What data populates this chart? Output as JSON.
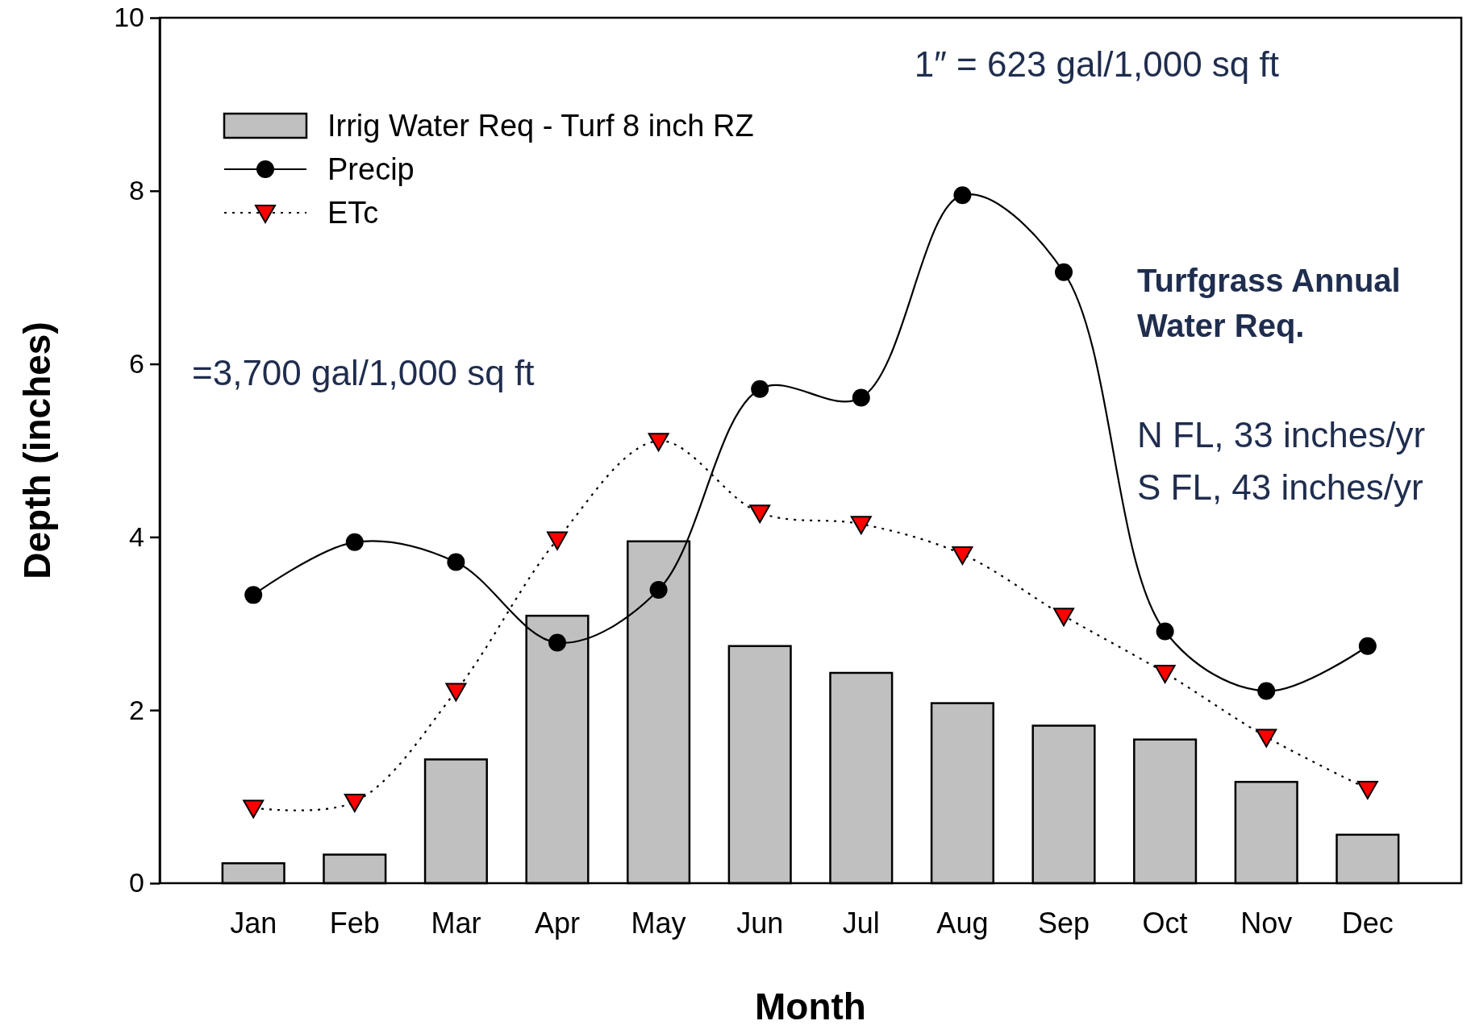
{
  "chart_data": {
    "type": "bar",
    "xlabel": "Month",
    "ylabel": "Depth (inches)",
    "categories": [
      "Jan",
      "Feb",
      "Mar",
      "Apr",
      "May",
      "Jun",
      "Jul",
      "Aug",
      "Sep",
      "Oct",
      "Nov",
      "Dec"
    ],
    "series": [
      {
        "name": "Irrig Water Req - Turf 8 inch RZ",
        "color": "#c0c0c0",
        "values": [
          0.23,
          0.33,
          1.43,
          3.09,
          3.95,
          2.74,
          2.43,
          2.08,
          1.82,
          1.66,
          1.17,
          0.56
        ]
      },
      {
        "name": "Precip",
        "type": "line",
        "color": "#000000",
        "marker": "circle",
        "line_style": "solid",
        "values": [
          3.33,
          3.94,
          3.71,
          2.78,
          3.39,
          5.71,
          5.61,
          7.95,
          7.06,
          2.91,
          2.22,
          2.74
        ]
      },
      {
        "name": "ETc",
        "type": "line",
        "color": "#ff0000",
        "marker": "triangle",
        "line_style": "dotted",
        "values": [
          0.87,
          0.94,
          2.22,
          3.97,
          5.11,
          4.28,
          4.15,
          3.8,
          3.09,
          2.43,
          1.69,
          1.09
        ]
      }
    ],
    "ylim": [
      0,
      10
    ],
    "yticks": [
      0,
      2,
      4,
      6,
      8,
      10
    ],
    "legend": "top left",
    "annotations": [
      "1″ = 623 gal/1,000 sq ft",
      "=3,700 gal/1,000 sq ft",
      "Turfgrass Annual Water Req.",
      "N FL, 33 inches/yr",
      "S FL, 43 inches/yr"
    ]
  }
}
